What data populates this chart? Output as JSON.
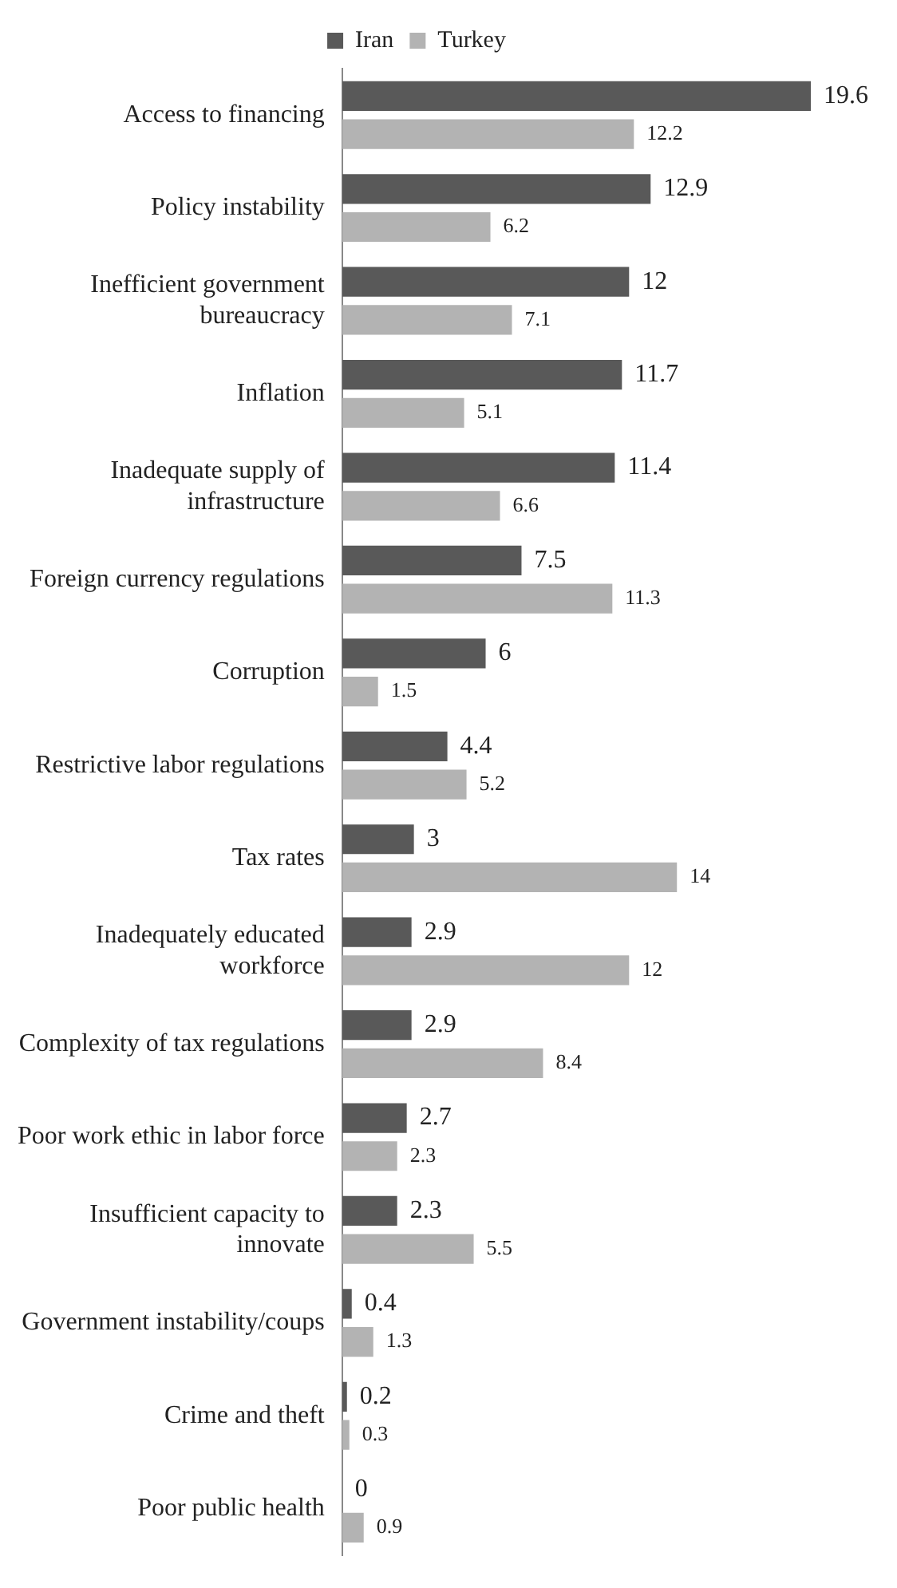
{
  "chart_data": {
    "type": "bar",
    "orientation": "horizontal",
    "categories": [
      "Access to financing",
      "Policy instability",
      "Inefficient government bureaucracy",
      "Inflation",
      "Inadequate supply of infrastructure",
      "Foreign currency regulations",
      "Corruption",
      "Restrictive labor regulations",
      "Tax rates",
      "Inadequately educated workforce",
      "Complexity of tax regulations",
      "Poor work ethic in labor force",
      "Insufficient capacity to innovate",
      "Government instability/coups",
      "Crime and theft",
      "Poor public health"
    ],
    "series": [
      {
        "name": "Iran",
        "color": "#595959",
        "values": [
          19.6,
          12.9,
          12,
          11.7,
          11.4,
          7.5,
          6,
          4.4,
          3,
          2.9,
          2.9,
          2.7,
          2.3,
          0.4,
          0.2,
          0
        ]
      },
      {
        "name": "Turkey",
        "color": "#b3b3b3",
        "values": [
          12.2,
          6.2,
          7.1,
          5.1,
          6.6,
          11.3,
          1.5,
          5.2,
          14,
          12,
          8.4,
          2.3,
          5.5,
          1.3,
          0.3,
          0.9
        ]
      }
    ],
    "data_labels": true,
    "legend": "top"
  }
}
